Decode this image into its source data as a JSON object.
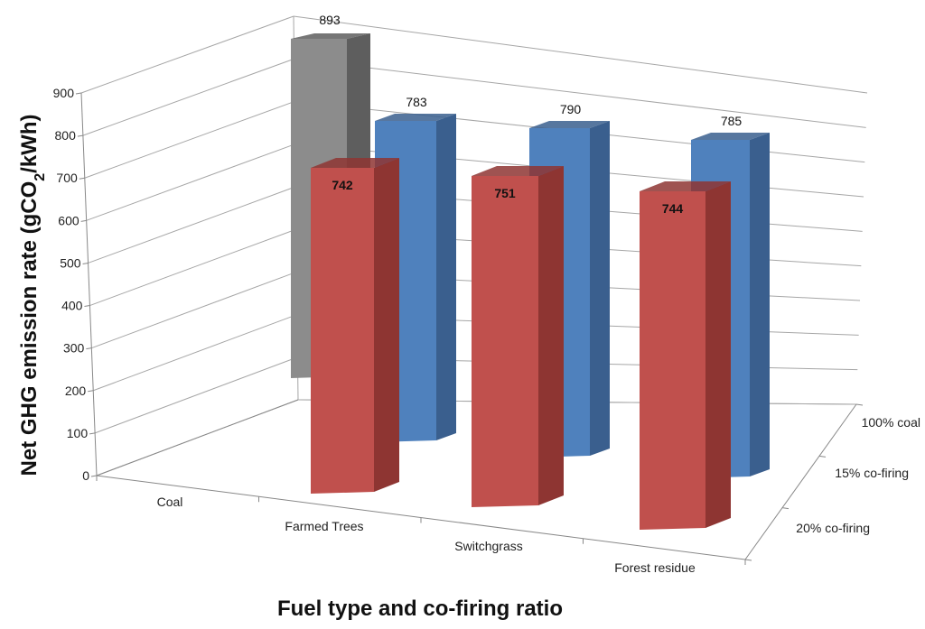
{
  "chart_data": {
    "type": "bar",
    "subtype": "3d-clustered-depth",
    "ylabel_parts": [
      "Net GHG emission rate (gCO",
      "2",
      "/kWh)"
    ],
    "xlabel": "Fuel type and co-firing ratio",
    "ylim": [
      0,
      900
    ],
    "yticks": [
      0,
      100,
      200,
      300,
      400,
      500,
      600,
      700,
      800,
      900
    ],
    "categories": [
      "Coal",
      "Farmed Trees",
      "Switchgrass",
      "Forest residue"
    ],
    "series": [
      {
        "name": "100% coal",
        "color": "#8c8c8c",
        "values": [
          893,
          null,
          null,
          null
        ]
      },
      {
        "name": "15% co-firing",
        "color": "#4f81bd",
        "values": [
          null,
          783,
          790,
          785
        ]
      },
      {
        "name": "20% co-firing",
        "color": "#c0504d",
        "values": [
          null,
          742,
          751,
          744
        ]
      }
    ],
    "data_labels": {
      "100% coal": [
        "893",
        "",
        "",
        ""
      ],
      "15% co-firing": [
        "",
        "783",
        "790",
        "785"
      ],
      "20% co-firing": [
        "",
        "742",
        "751",
        "744"
      ]
    }
  }
}
